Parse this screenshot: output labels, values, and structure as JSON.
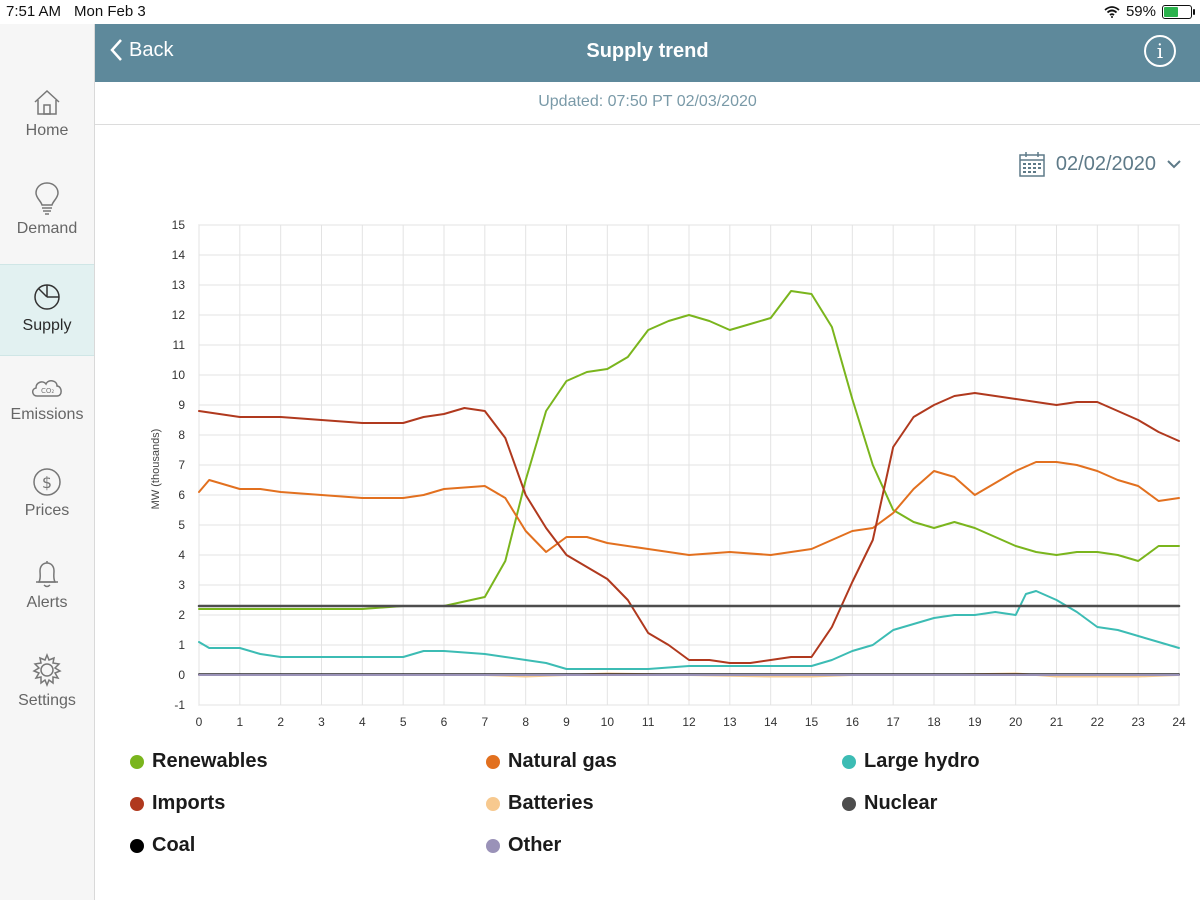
{
  "status_bar": {
    "time": "7:51 AM",
    "date": "Mon Feb 3",
    "battery": "59%",
    "battery_level": 0.59
  },
  "sidebar": {
    "items": [
      {
        "label": "Home",
        "icon": "home-icon"
      },
      {
        "label": "Demand",
        "icon": "lightbulb-icon"
      },
      {
        "label": "Supply",
        "icon": "pie-chart-icon",
        "active": true
      },
      {
        "label": "Emissions",
        "icon": "co2-cloud-icon"
      },
      {
        "label": "Prices",
        "icon": "dollar-icon"
      },
      {
        "label": "Alerts",
        "icon": "bell-icon"
      },
      {
        "label": "Settings",
        "icon": "gear-icon"
      }
    ]
  },
  "header": {
    "back_label": "Back",
    "title": "Supply trend",
    "info_label": "i"
  },
  "updated_text": "Updated: 07:50 PT 02/03/2020",
  "date_picker": {
    "value": "02/02/2020"
  },
  "colors": {
    "header_bg": "#5e899b",
    "renewables": "#7ab51d",
    "natural_gas": "#e2701f",
    "large_hydro": "#3cbcb4",
    "imports": "#b0391e",
    "batteries": "#f7c98f",
    "nuclear": "#4d4d4d",
    "coal": "#000000",
    "other": "#9a92b8"
  },
  "chart_data": {
    "type": "line",
    "ylabel": "MW (thousands)",
    "xlabel": "",
    "xlim": [
      0,
      24
    ],
    "ylim": [
      -1,
      15
    ],
    "x_ticks": [
      "0",
      "1",
      "2",
      "3",
      "4",
      "5",
      "6",
      "7",
      "8",
      "9",
      "10",
      "11",
      "12",
      "13",
      "14",
      "15",
      "16",
      "17",
      "18",
      "19",
      "20",
      "21",
      "22",
      "23",
      "24"
    ],
    "y_ticks": [
      "-1",
      "0",
      "1",
      "2",
      "3",
      "4",
      "5",
      "6",
      "7",
      "8",
      "9",
      "10",
      "11",
      "12",
      "13",
      "14",
      "15"
    ],
    "grid": true,
    "series": [
      {
        "name": "Renewables",
        "color_key": "renewables",
        "x": [
          0,
          1,
          2,
          3,
          4,
          5,
          6,
          7,
          7.5,
          8,
          8.5,
          9,
          9.5,
          10,
          10.5,
          11,
          11.5,
          12,
          12.5,
          13,
          13.5,
          14,
          14.5,
          15,
          15.5,
          16,
          16.5,
          17,
          17.5,
          18,
          18.5,
          19,
          19.5,
          20,
          20.5,
          21,
          21.5,
          22,
          22.5,
          23,
          23.5,
          24
        ],
        "y": [
          2.2,
          2.2,
          2.2,
          2.2,
          2.2,
          2.3,
          2.3,
          2.6,
          3.8,
          6.5,
          8.8,
          9.8,
          10.1,
          10.2,
          10.6,
          11.5,
          11.8,
          12.0,
          11.8,
          11.5,
          11.7,
          11.9,
          12.8,
          12.7,
          11.6,
          9.2,
          7.0,
          5.5,
          5.1,
          4.9,
          5.1,
          4.9,
          4.6,
          4.3,
          4.1,
          4.0,
          4.1,
          4.1,
          4.0,
          3.8,
          4.3,
          4.3
        ]
      },
      {
        "name": "Natural gas",
        "color_key": "natural_gas",
        "x": [
          0,
          0.25,
          0.5,
          1,
          1.5,
          2,
          3,
          4,
          5,
          5.5,
          6,
          7,
          7.5,
          8,
          8.5,
          9,
          9.5,
          10,
          11,
          12,
          13,
          14,
          15,
          15.5,
          16,
          16.5,
          17,
          17.5,
          18,
          18.5,
          19,
          19.5,
          20,
          20.5,
          21,
          21.5,
          22,
          22.5,
          23,
          23.5,
          24
        ],
        "y": [
          6.1,
          6.5,
          6.4,
          6.2,
          6.2,
          6.1,
          6.0,
          5.9,
          5.9,
          6.0,
          6.2,
          6.3,
          5.9,
          4.8,
          4.1,
          4.6,
          4.6,
          4.4,
          4.2,
          4.0,
          4.1,
          4.0,
          4.2,
          4.5,
          4.8,
          4.9,
          5.4,
          6.2,
          6.8,
          6.6,
          6.0,
          6.4,
          6.8,
          7.1,
          7.1,
          7.0,
          6.8,
          6.5,
          6.3,
          5.8,
          5.9
        ]
      },
      {
        "name": "Large hydro",
        "color_key": "large_hydro",
        "x": [
          0,
          0.25,
          0.5,
          1,
          1.5,
          2,
          3,
          4,
          5,
          5.5,
          6,
          7,
          7.5,
          8,
          8.5,
          9,
          9.5,
          10,
          10.5,
          11,
          12,
          13,
          14,
          15,
          15.5,
          16,
          16.5,
          17,
          17.5,
          18,
          18.5,
          19,
          19.5,
          20,
          20.25,
          20.5,
          21,
          21.5,
          22,
          22.5,
          23,
          23.5,
          24
        ],
        "y": [
          1.1,
          0.9,
          0.9,
          0.9,
          0.7,
          0.6,
          0.6,
          0.6,
          0.6,
          0.8,
          0.8,
          0.7,
          0.6,
          0.5,
          0.4,
          0.2,
          0.2,
          0.2,
          0.2,
          0.2,
          0.3,
          0.3,
          0.3,
          0.3,
          0.5,
          0.8,
          1.0,
          1.5,
          1.7,
          1.9,
          2.0,
          2.0,
          2.1,
          2.0,
          2.7,
          2.8,
          2.5,
          2.1,
          1.6,
          1.5,
          1.3,
          1.1,
          0.9
        ]
      },
      {
        "name": "Imports",
        "color_key": "imports",
        "x": [
          0,
          0.5,
          1,
          1.5,
          2,
          3,
          4,
          4.5,
          5,
          5.5,
          6,
          6.5,
          7,
          7.5,
          8,
          8.5,
          9,
          9.5,
          10,
          10.5,
          11,
          11.5,
          12,
          12.5,
          13,
          13.5,
          14,
          14.5,
          15,
          15.5,
          16,
          16.5,
          17,
          17.5,
          18,
          18.5,
          19,
          19.5,
          20,
          20.5,
          21,
          21.5,
          22,
          22.5,
          23,
          23.5,
          24
        ],
        "y": [
          8.8,
          8.7,
          8.6,
          8.6,
          8.6,
          8.5,
          8.4,
          8.4,
          8.4,
          8.6,
          8.7,
          8.9,
          8.8,
          7.9,
          6.0,
          4.9,
          4.0,
          3.6,
          3.2,
          2.5,
          1.4,
          1.0,
          0.5,
          0.5,
          0.4,
          0.4,
          0.5,
          0.6,
          0.6,
          1.6,
          3.1,
          4.5,
          7.6,
          8.6,
          9.0,
          9.3,
          9.4,
          9.3,
          9.2,
          9.1,
          9.0,
          9.1,
          9.1,
          8.8,
          8.5,
          8.1,
          7.8
        ]
      },
      {
        "name": "Batteries",
        "color_key": "batteries",
        "x": [
          0,
          2,
          4,
          6,
          7,
          8,
          9,
          10,
          12,
          14,
          15,
          16,
          18,
          20,
          21,
          22,
          23,
          24
        ],
        "y": [
          0,
          0,
          0,
          0,
          0,
          -0.05,
          0,
          0.05,
          0,
          -0.05,
          -0.05,
          0,
          0,
          0.05,
          -0.05,
          -0.05,
          -0.05,
          0
        ]
      },
      {
        "name": "Nuclear",
        "color_key": "nuclear",
        "x": [
          0,
          24
        ],
        "y": [
          2.3,
          2.3
        ]
      },
      {
        "name": "Coal",
        "color_key": "coal",
        "x": [
          0,
          24
        ],
        "y": [
          0.02,
          0.02
        ]
      },
      {
        "name": "Other",
        "color_key": "other",
        "x": [
          0,
          24
        ],
        "y": [
          0,
          0
        ]
      }
    ]
  }
}
